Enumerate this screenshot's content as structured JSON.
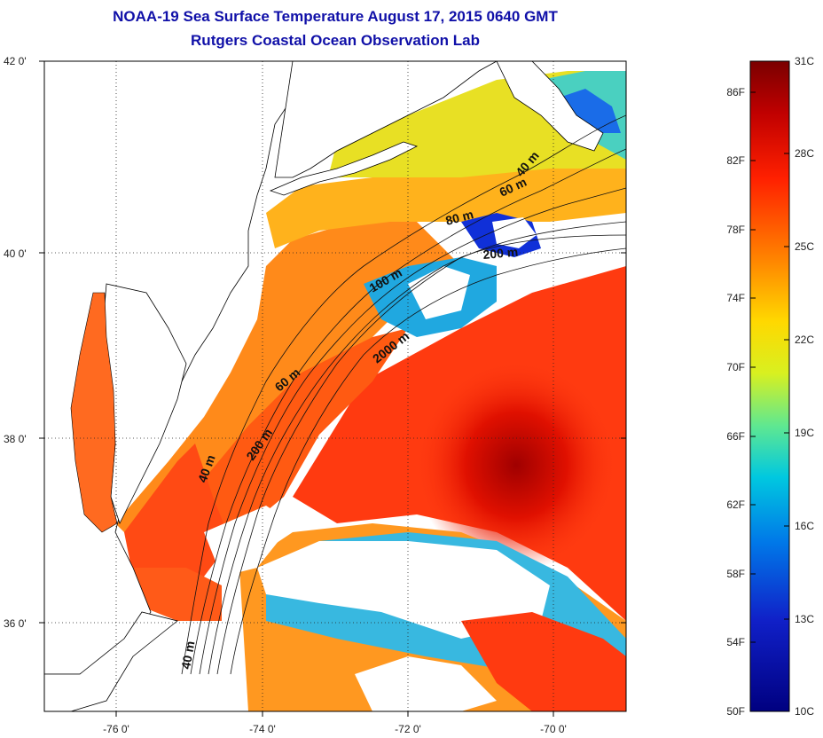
{
  "title": "NOAA-19 Sea Surface Temperature August 17, 2015 0640 GMT",
  "subtitle": "Rutgers Coastal Ocean Observation Lab",
  "latitude_labels": [
    "42 0'",
    "40 0'",
    "38 0'",
    "36 0'"
  ],
  "longitude_labels": [
    "-76 0'",
    "-74 0'",
    "-72 0'",
    "-70 0'"
  ],
  "contour_labels": [
    "40 m",
    "60 m",
    "80 m",
    "200 m",
    "100 m",
    "2000 m",
    "60 m",
    "200 m",
    "40 m",
    "40 m"
  ],
  "colorbar": {
    "fahrenheit_labels": [
      "86F",
      "82F",
      "78F",
      "74F",
      "70F",
      "66F",
      "62F",
      "58F",
      "54F",
      "50F"
    ],
    "celsius_labels": [
      "31C",
      "28C",
      "25C",
      "22C",
      "19C",
      "16C",
      "13C",
      "10C"
    ],
    "colors": [
      "#7a0000",
      "#d40000",
      "#ff3000",
      "#ff8800",
      "#ffd800",
      "#d8f020",
      "#60e890",
      "#00c8e0",
      "#0078e8",
      "#1020c8",
      "#000080"
    ]
  },
  "colors": {
    "title": "#1010a8",
    "land_and_clouds": "#ffffff",
    "coastline": "#000000"
  }
}
